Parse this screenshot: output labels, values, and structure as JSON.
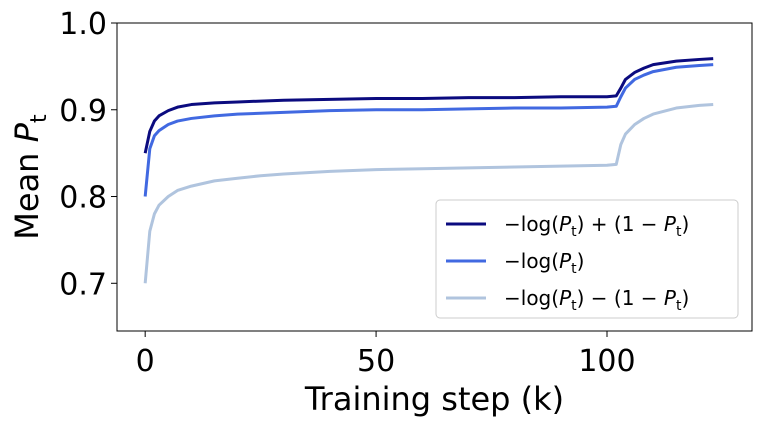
{
  "chart_data": {
    "type": "line",
    "x_label": "Training step (k)",
    "y_label": "Mean P_t",
    "x": [
      0,
      1,
      2,
      3,
      5,
      7,
      10,
      15,
      20,
      25,
      30,
      40,
      50,
      60,
      70,
      80,
      90,
      100,
      102,
      103,
      104,
      106,
      108,
      110,
      115,
      120,
      123
    ],
    "series": [
      {
        "name": "−log(P_t) + (1 − P_t)",
        "color": "#0b0b7f",
        "values": [
          0.85,
          0.875,
          0.887,
          0.893,
          0.899,
          0.903,
          0.906,
          0.908,
          0.909,
          0.91,
          0.911,
          0.912,
          0.913,
          0.913,
          0.914,
          0.914,
          0.915,
          0.915,
          0.916,
          0.925,
          0.935,
          0.943,
          0.948,
          0.952,
          0.956,
          0.958,
          0.959
        ]
      },
      {
        "name": "−log(P_t)",
        "color": "#4169e1",
        "values": [
          0.8,
          0.855,
          0.87,
          0.876,
          0.883,
          0.887,
          0.89,
          0.893,
          0.895,
          0.896,
          0.897,
          0.899,
          0.9,
          0.9,
          0.901,
          0.902,
          0.902,
          0.903,
          0.904,
          0.915,
          0.925,
          0.935,
          0.94,
          0.944,
          0.949,
          0.951,
          0.952
        ]
      },
      {
        "name": "−log(P_t) − (1 − P_t)",
        "color": "#b0c4de",
        "values": [
          0.7,
          0.76,
          0.78,
          0.79,
          0.8,
          0.807,
          0.812,
          0.818,
          0.821,
          0.824,
          0.826,
          0.829,
          0.831,
          0.832,
          0.833,
          0.834,
          0.835,
          0.836,
          0.837,
          0.86,
          0.872,
          0.883,
          0.89,
          0.895,
          0.902,
          0.905,
          0.906
        ]
      }
    ],
    "xlim": [
      -6.1,
      131.4
    ],
    "ylim": [
      0.645,
      1.0
    ],
    "xticks": [
      0,
      50,
      100
    ],
    "yticks": [
      {
        "value": 0.7,
        "label": "0.7"
      },
      {
        "value": 0.8,
        "label": "0.8"
      },
      {
        "value": 0.9,
        "label": "0.9"
      },
      {
        "value": 1.0,
        "label": "1.0"
      }
    ],
    "legend": "lower right"
  }
}
